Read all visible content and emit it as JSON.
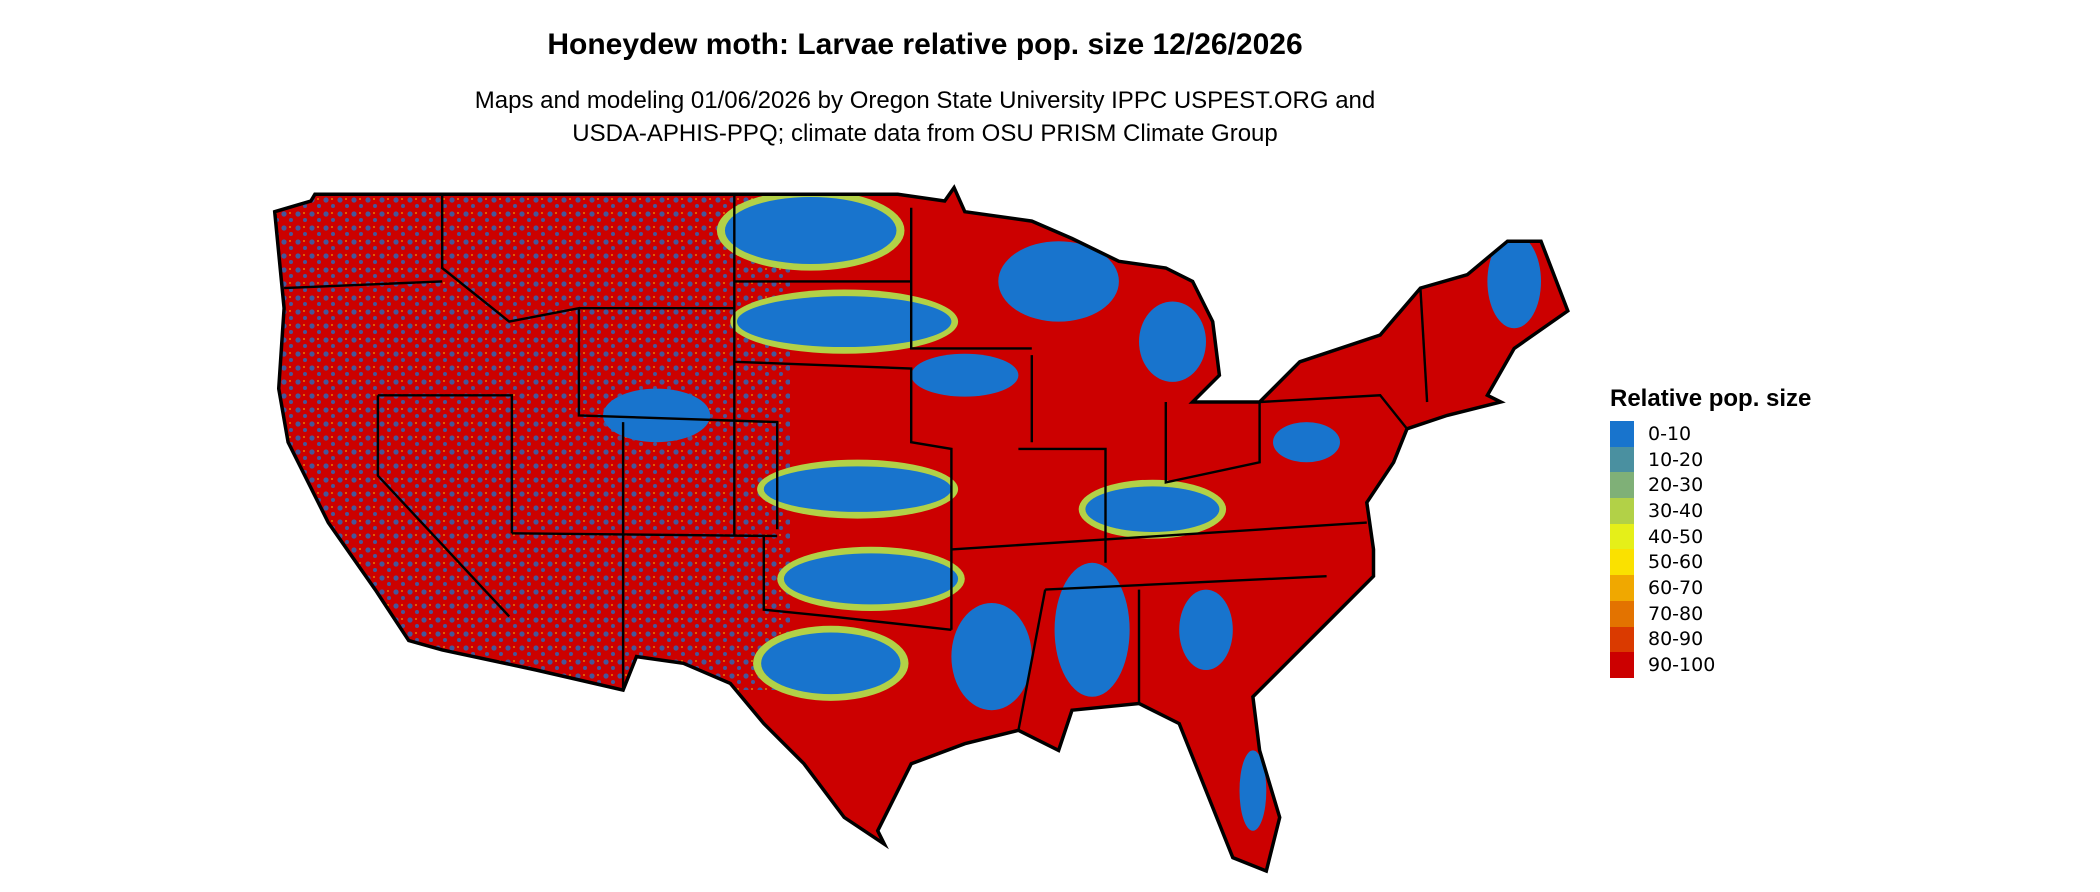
{
  "title": "Honeydew moth: Larvae relative pop. size 12/26/2026",
  "subtitle_line1": "Maps and modeling 01/06/2026 by Oregon State University IPPC USPEST.ORG and",
  "subtitle_line2": "USDA-APHIS-PPQ; climate data from OSU PRISM Climate Group",
  "map": {
    "region": "Contiguous United States",
    "dominant_class": "90-100",
    "secondary_class": "0-10"
  },
  "legend": {
    "title": "Relative pop. size",
    "items": [
      {
        "label": "0-10",
        "color": "#1874CD"
      },
      {
        "label": "10-20",
        "color": "#4A90A0"
      },
      {
        "label": "20-30",
        "color": "#7FB077"
      },
      {
        "label": "30-40",
        "color": "#B2D147"
      },
      {
        "label": "40-50",
        "color": "#E5EF19"
      },
      {
        "label": "50-60",
        "color": "#FAE100"
      },
      {
        "label": "60-70",
        "color": "#F0A800"
      },
      {
        "label": "70-80",
        "color": "#E37300"
      },
      {
        "label": "80-90",
        "color": "#DA3A00"
      },
      {
        "label": "90-100",
        "color": "#CC0000"
      }
    ]
  }
}
